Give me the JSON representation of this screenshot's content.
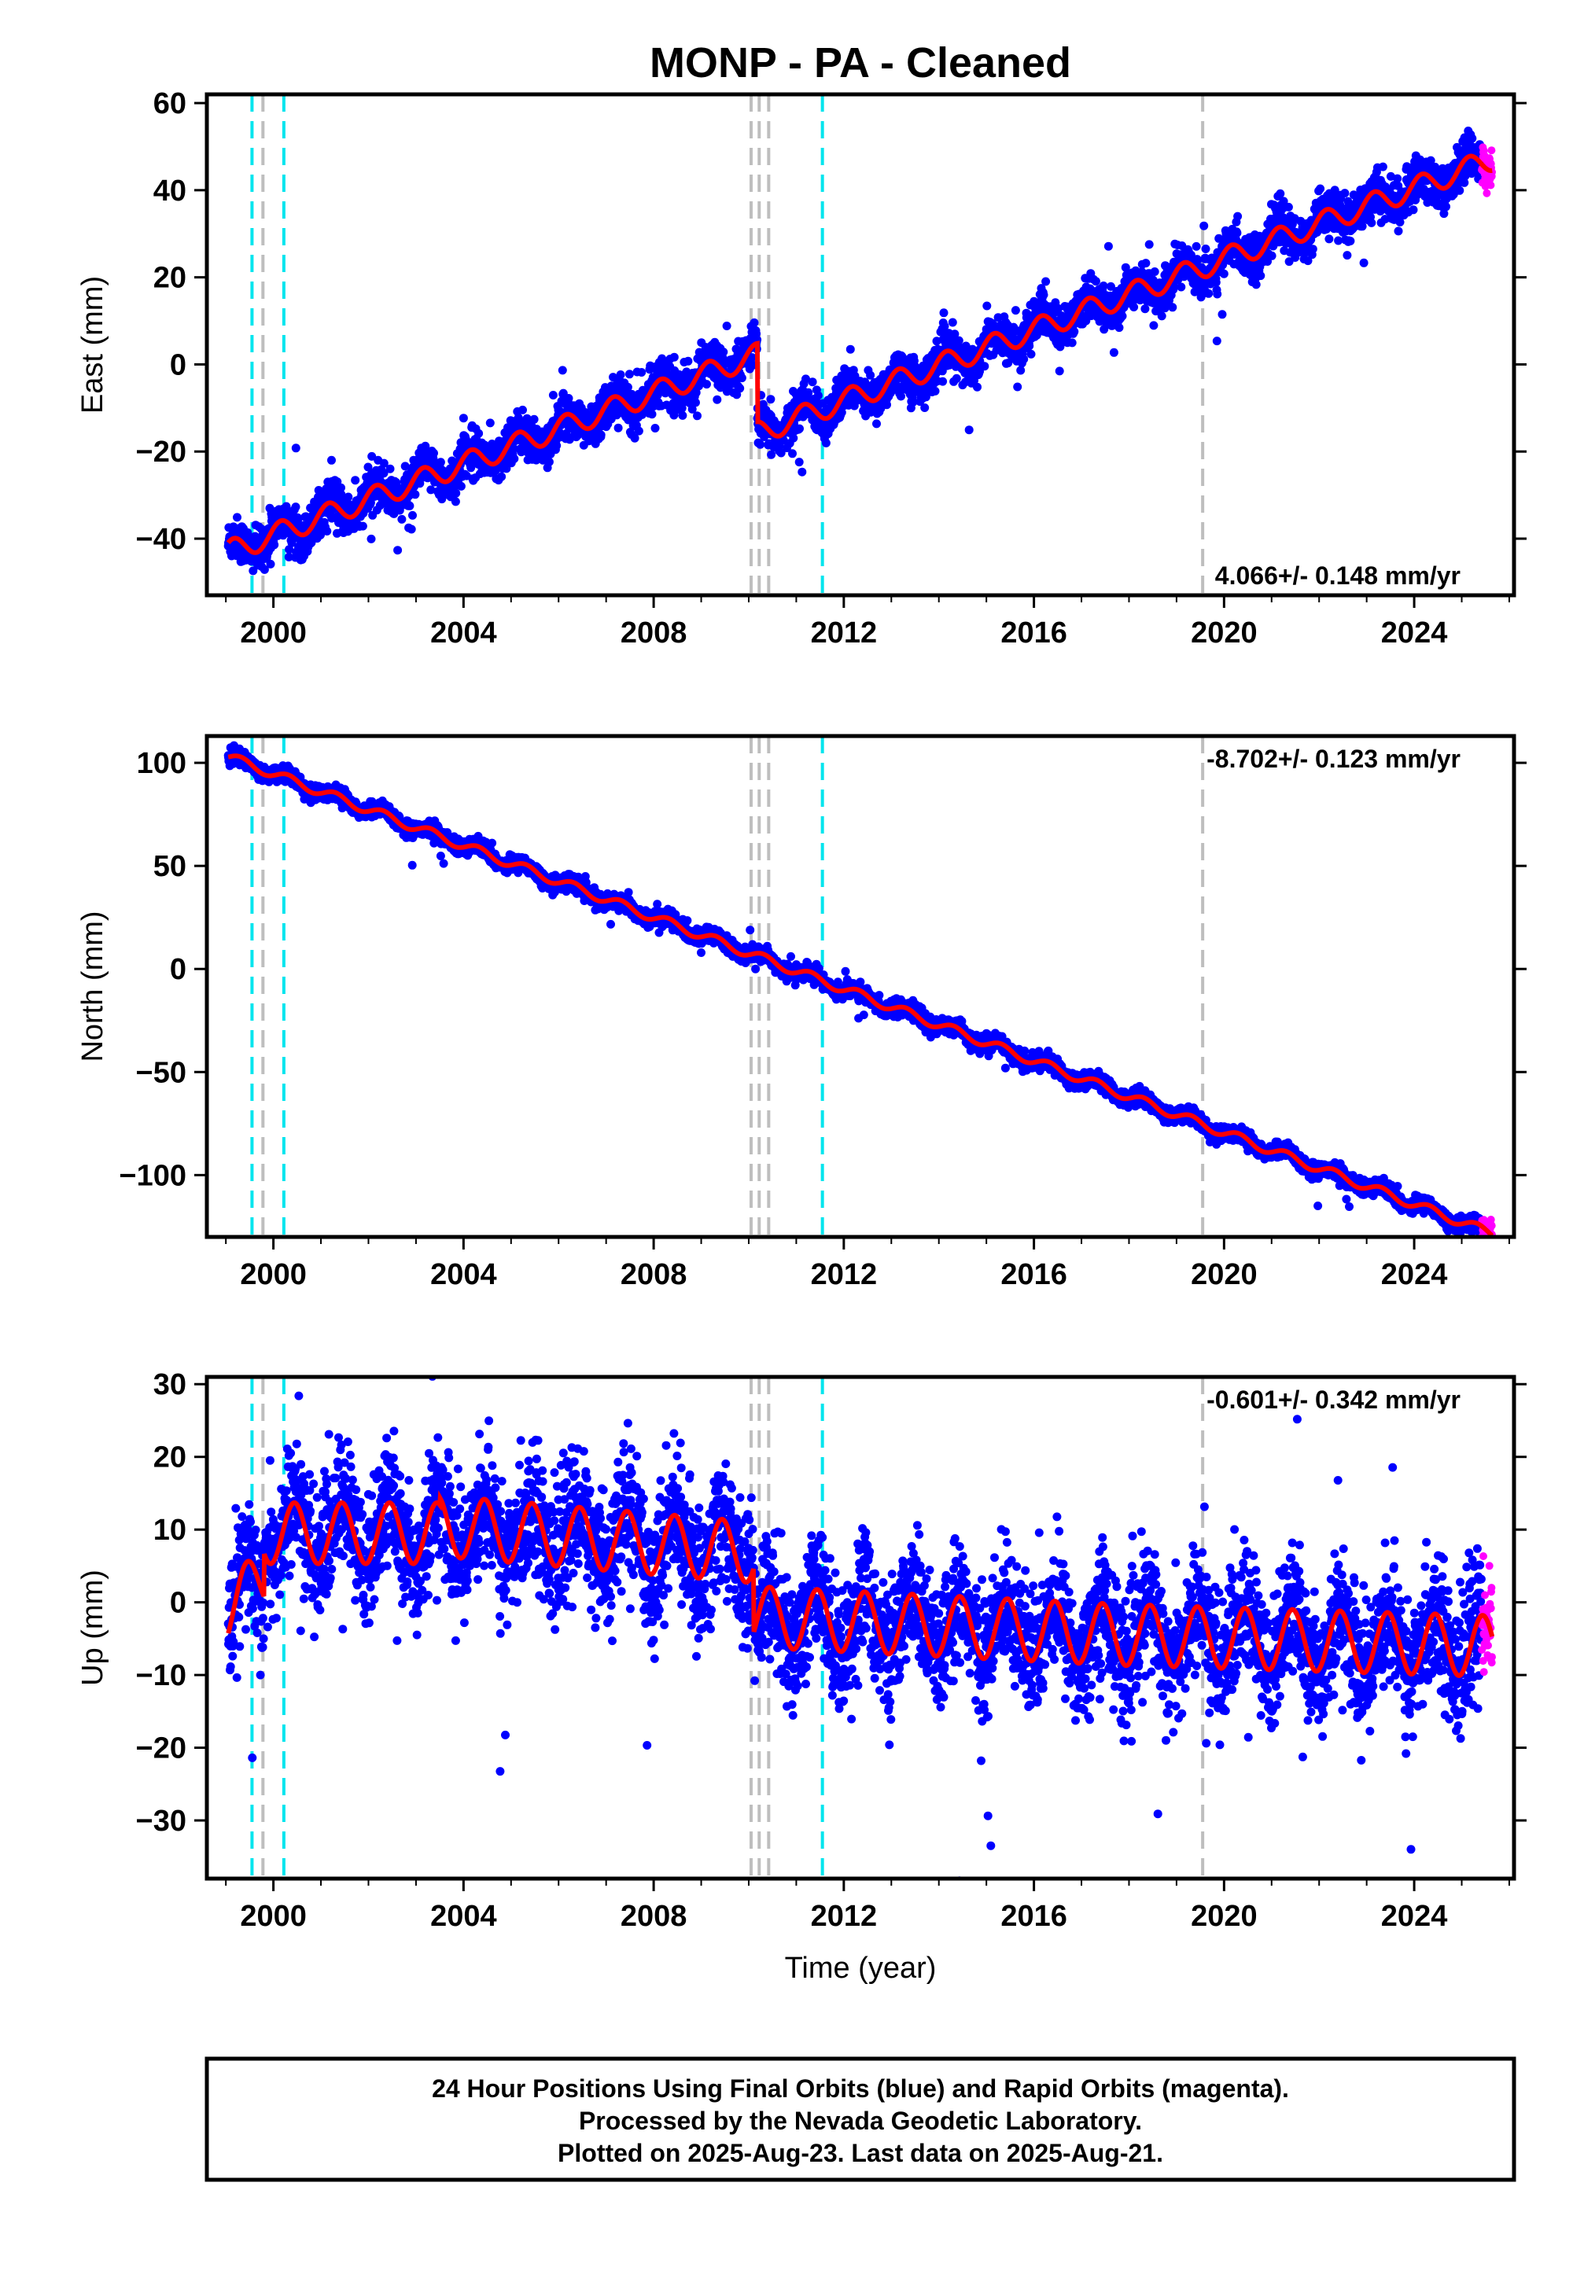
{
  "title": "MONP  - PA - Cleaned",
  "xlabel": "Time (year)",
  "colors": {
    "final": "#0000ff",
    "rapid": "#ff00ff",
    "model": "#ff0000",
    "step_equipment": "#00e5ee",
    "step_other": "#bebebe"
  },
  "footer": {
    "line1": "24 Hour Positions Using Final Orbits (blue) and Rapid Orbits (magenta).",
    "line2": "Processed by the Nevada Geodetic Laboratory.",
    "line3": "Plotted on 2025-Aug-23. Last data on 2025-Aug-21."
  },
  "chart_data": [
    {
      "type": "scatter",
      "component": "east",
      "ylabel": "East (mm)",
      "rate_text": "4.066+/- 0.148 mm/yr",
      "rate_value": 4.066,
      "rate_sigma": 0.148,
      "xlim": [
        1998.6,
        2026.1
      ],
      "ylim": [
        -53,
        62
      ],
      "xticks": [
        2000,
        2004,
        2008,
        2012,
        2016,
        2020,
        2024
      ],
      "yticks": [
        -40,
        -20,
        0,
        20,
        40,
        60
      ],
      "offset_epoch": 2010.18,
      "offset_size": -18,
      "start_value": -43,
      "seasonal_amplitude": 2.6,
      "scatter_sigma": 2.4
    },
    {
      "type": "scatter",
      "component": "north",
      "ylabel": "North (mm)",
      "rate_text": "-8.702+/- 0.123 mm/yr",
      "rate_value": -8.702,
      "rate_sigma": 0.123,
      "xlim": [
        1998.6,
        2026.1
      ],
      "ylim": [
        -130,
        113
      ],
      "xticks": [
        2000,
        2004,
        2008,
        2012,
        2016,
        2020,
        2024
      ],
      "yticks": [
        -100,
        -50,
        0,
        50,
        100
      ],
      "start_value": 103,
      "seasonal_amplitude": 2.2,
      "scatter_sigma": 1.9
    },
    {
      "type": "scatter",
      "component": "up",
      "ylabel": "Up (mm)",
      "rate_text": "-0.601+/- 0.342 mm/yr",
      "rate_value": -0.601,
      "rate_sigma": 0.342,
      "xlim": [
        1998.6,
        2026.1
      ],
      "ylim": [
        -38,
        31
      ],
      "xticks": [
        2000,
        2004,
        2008,
        2012,
        2016,
        2020,
        2024
      ],
      "yticks": [
        -30,
        -20,
        -10,
        0,
        10,
        20,
        30
      ],
      "seasonal_amplitude": 4.2,
      "scatter_sigma": 4.3
    }
  ],
  "steps": [
    {
      "epoch": 1999.55,
      "kind": "equipment"
    },
    {
      "epoch": 1999.78,
      "kind": "other"
    },
    {
      "epoch": 2000.22,
      "kind": "equipment"
    },
    {
      "epoch": 2010.05,
      "kind": "other"
    },
    {
      "epoch": 2010.22,
      "kind": "other"
    },
    {
      "epoch": 2010.42,
      "kind": "other"
    },
    {
      "epoch": 2011.55,
      "kind": "equipment"
    },
    {
      "epoch": 2019.55,
      "kind": "other"
    }
  ],
  "data_span": {
    "start": 1999.05,
    "end": 2025.64,
    "rapid_start": 2025.42
  }
}
